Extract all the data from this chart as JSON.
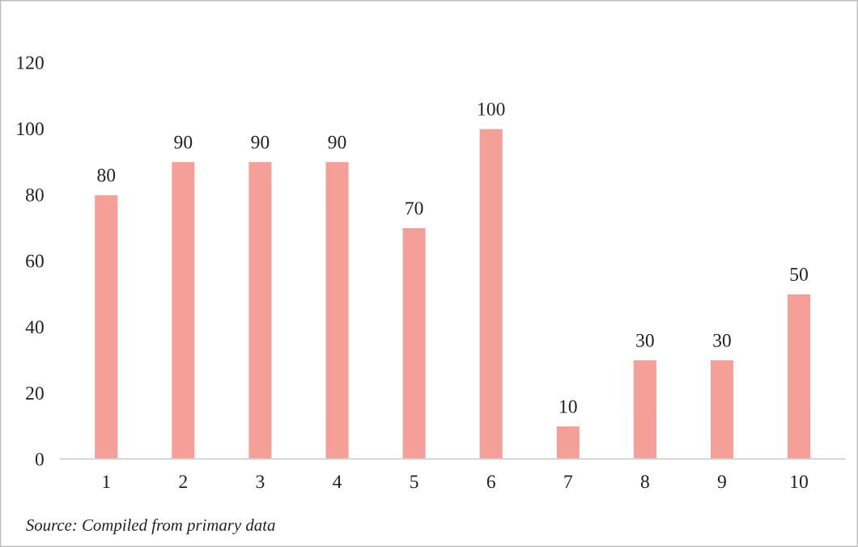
{
  "chart_data": {
    "type": "bar",
    "categories": [
      "1",
      "2",
      "3",
      "4",
      "5",
      "6",
      "7",
      "8",
      "9",
      "10"
    ],
    "values": [
      80,
      90,
      90,
      90,
      70,
      100,
      10,
      30,
      30,
      50
    ],
    "color": "#f4a098",
    "ylim": [
      0,
      120
    ],
    "yticks": [
      0,
      20,
      40,
      60,
      80,
      100,
      120
    ],
    "data_labels": true,
    "annotations": [
      "Source: Compiled from primary data"
    ]
  }
}
